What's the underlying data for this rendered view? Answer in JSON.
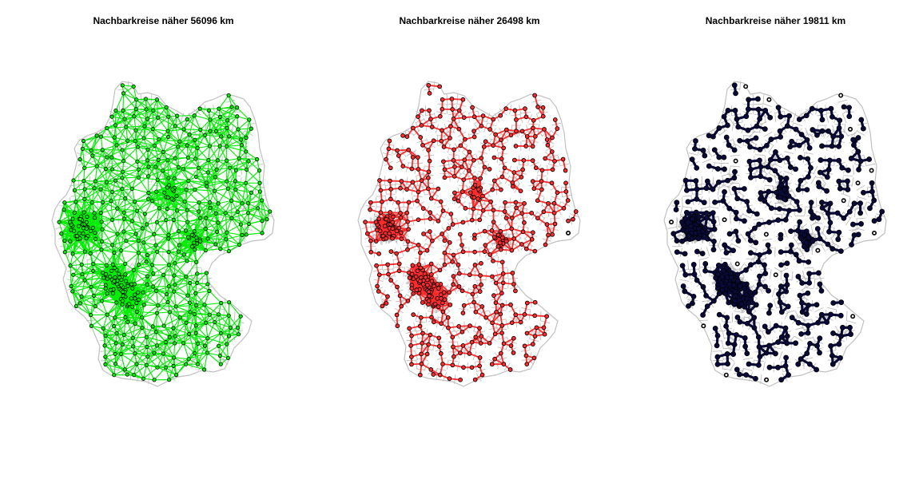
{
  "panels": [
    {
      "title": "Nachbarkreise näher 56096 km",
      "style": "links-green"
    },
    {
      "title": "Nachbarkreise näher 26498 km",
      "style": "links-red"
    },
    {
      "title": "Nachbarkreise näher 19811 km",
      "style": "dots-navy"
    }
  ],
  "colors": {
    "boundary": "#c0c0c0",
    "green": "#00ee00",
    "red": "#ff2a2a",
    "navy": "#0a0a3a",
    "ring": "#000000"
  }
}
